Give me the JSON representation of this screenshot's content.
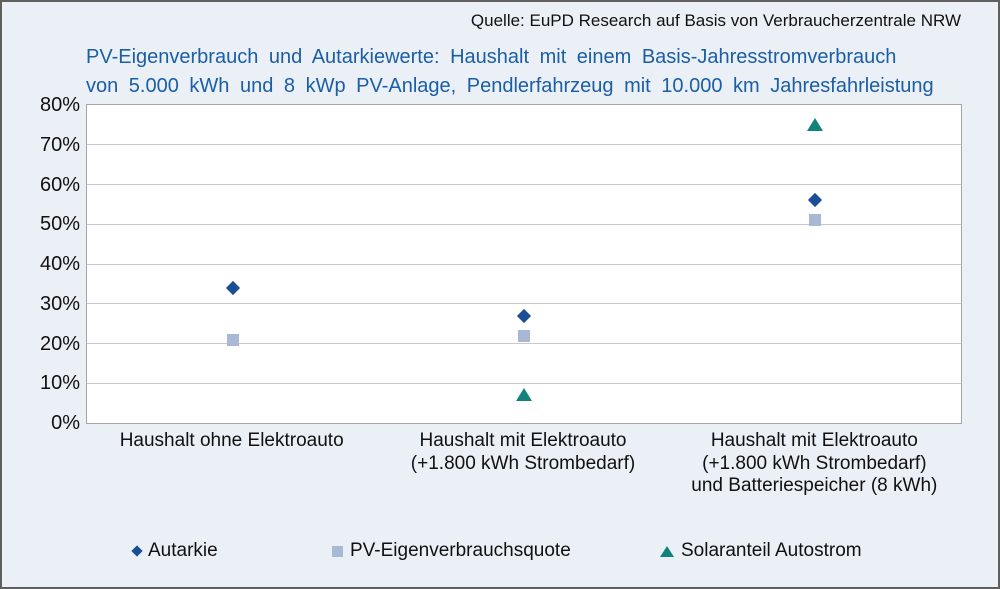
{
  "source": "Quelle: EuPD Research auf Basis von Verbraucherzentrale NRW",
  "title": {
    "line1": "PV-Eigenverbrauch und Autarkiewerte: Haushalt mit einem Basis-Jahresstromverbrauch",
    "line2": "von 5.000 kWh und 8 kWp PV-Anlage, Pendlerfahrzeug mit 10.000 km Jahresfahrleistung"
  },
  "colors": {
    "background": "#EAF0F6",
    "title_blue": "#1B5EA6",
    "autarkie_diamond": "#1A4F97",
    "eigenverbrauch_square": "#A9B8D5",
    "solaranteil_triangle": "#12837B",
    "gridline": "#C9C9C9"
  },
  "chart_data": {
    "type": "scatter",
    "title": "PV-Eigenverbrauch und Autarkiewerte: Haushalt mit einem Basis-Jahresstromverbrauch von 5.000 kWh und 8 kWp PV-Anlage, Pendlerfahrzeug mit 10.000 km Jahresfahrleistung",
    "categories": [
      [
        "Haushalt ohne Elektroauto"
      ],
      [
        "Haushalt mit Elektroauto",
        "(+1.800 kWh Strombedarf)"
      ],
      [
        "Haushalt mit Elektroauto",
        "(+1.800 kWh Strombedarf)",
        "und Batteriespeicher (8 kWh)"
      ]
    ],
    "series": [
      {
        "name": "Autarkie",
        "marker": "diamond",
        "color": "#1A4F97",
        "values": [
          34,
          27,
          56
        ]
      },
      {
        "name": "PV-Eigenverbrauchsquote",
        "marker": "square",
        "color": "#A9B8D5",
        "values": [
          21,
          22,
          51
        ]
      },
      {
        "name": "Solaranteil Autostrom",
        "marker": "triangle",
        "color": "#12837B",
        "values": [
          null,
          7,
          75
        ]
      }
    ],
    "ylim": [
      0,
      80
    ],
    "ytick_step": 10,
    "ytick_suffix": "%",
    "grid": true,
    "legend_position": "bottom"
  }
}
